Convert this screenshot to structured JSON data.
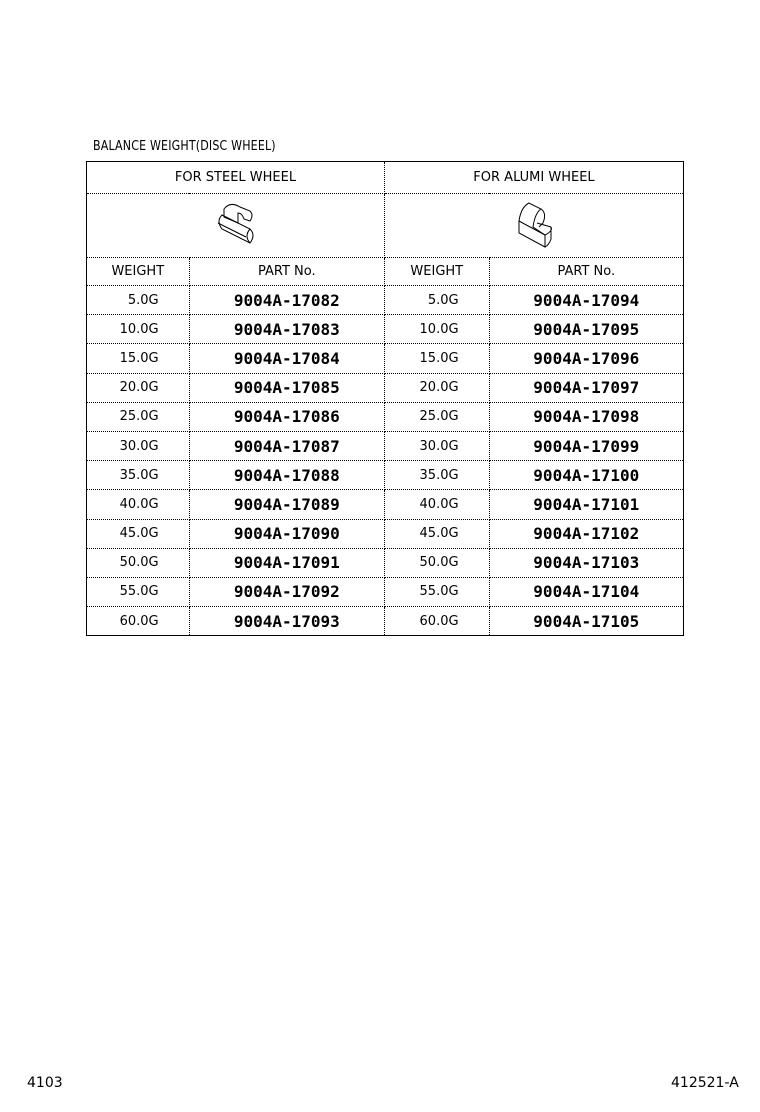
{
  "title": "BALANCE WEIGHT(DISC WHEEL)",
  "groups": [
    {
      "label": "FOR STEEL WHEEL",
      "icon": "steel-wheel-balance-weight"
    },
    {
      "label": "FOR ALUMI WHEEL",
      "icon": "alumi-wheel-balance-weight"
    }
  ],
  "columns": {
    "weight": "WEIGHT",
    "part": "PART No."
  },
  "rows": [
    {
      "w1": "5.0G",
      "p1": "9004A-17082",
      "w2": "5.0G",
      "p2": "9004A-17094"
    },
    {
      "w1": "10.0G",
      "p1": "9004A-17083",
      "w2": "10.0G",
      "p2": "9004A-17095"
    },
    {
      "w1": "15.0G",
      "p1": "9004A-17084",
      "w2": "15.0G",
      "p2": "9004A-17096"
    },
    {
      "w1": "20.0G",
      "p1": "9004A-17085",
      "w2": "20.0G",
      "p2": "9004A-17097"
    },
    {
      "w1": "25.0G",
      "p1": "9004A-17086",
      "w2": "25.0G",
      "p2": "9004A-17098"
    },
    {
      "w1": "30.0G",
      "p1": "9004A-17087",
      "w2": "30.0G",
      "p2": "9004A-17099"
    },
    {
      "w1": "35.0G",
      "p1": "9004A-17088",
      "w2": "35.0G",
      "p2": "9004A-17100"
    },
    {
      "w1": "40.0G",
      "p1": "9004A-17089",
      "w2": "40.0G",
      "p2": "9004A-17101"
    },
    {
      "w1": "45.0G",
      "p1": "9004A-17090",
      "w2": "45.0G",
      "p2": "9004A-17102"
    },
    {
      "w1": "50.0G",
      "p1": "9004A-17091",
      "w2": "50.0G",
      "p2": "9004A-17103"
    },
    {
      "w1": "55.0G",
      "p1": "9004A-17092",
      "w2": "55.0G",
      "p2": "9004A-17104"
    },
    {
      "w1": "60.0G",
      "p1": "9004A-17093",
      "w2": "60.0G",
      "p2": "9004A-17105"
    }
  ],
  "footer": {
    "left": "4103",
    "right": "412521-A"
  }
}
